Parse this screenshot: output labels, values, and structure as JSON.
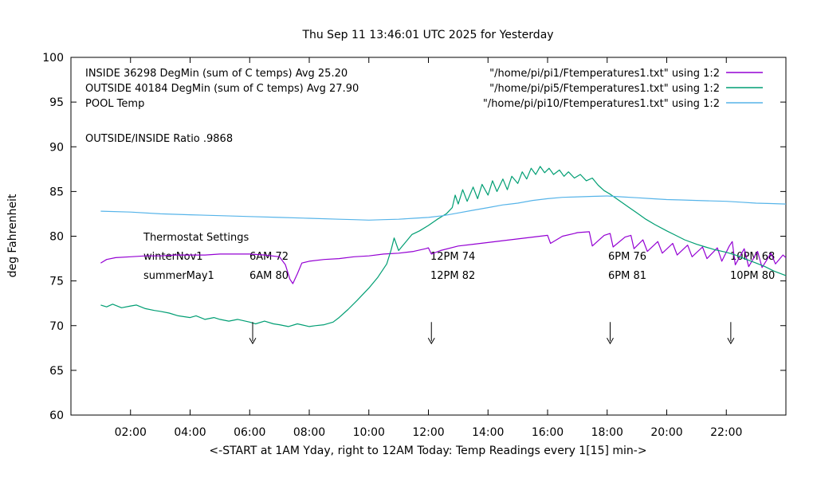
{
  "chart_data": {
    "type": "line",
    "title": "Thu Sep 11 13:46:01 UTC 2025 for Yesterday",
    "xlabel": "<-START at 1AM Yday, right to 12AM Today:  Temp Readings every 1[15] min->",
    "ylabel": "deg Fahrenheit",
    "xlim": [
      0,
      24
    ],
    "ylim": [
      60,
      100
    ],
    "grid": false,
    "x_unit": "hours, 1 = 1AM yesterday, 24 = 12AM today",
    "xticks": [
      {
        "v": 2,
        "label": "02:00"
      },
      {
        "v": 4,
        "label": "04:00"
      },
      {
        "v": 6,
        "label": "06:00"
      },
      {
        "v": 8,
        "label": "08:00"
      },
      {
        "v": 10,
        "label": "10:00"
      },
      {
        "v": 12,
        "label": "12:00"
      },
      {
        "v": 14,
        "label": "14:00"
      },
      {
        "v": 16,
        "label": "16:00"
      },
      {
        "v": 18,
        "label": "18:00"
      },
      {
        "v": 20,
        "label": "20:00"
      },
      {
        "v": 22,
        "label": "22:00"
      }
    ],
    "yticks": [
      {
        "v": 60,
        "label": "60"
      },
      {
        "v": 65,
        "label": "65"
      },
      {
        "v": 70,
        "label": "70"
      },
      {
        "v": 75,
        "label": "75"
      },
      {
        "v": 80,
        "label": "80"
      },
      {
        "v": 85,
        "label": "85"
      },
      {
        "v": 90,
        "label": "90"
      },
      {
        "v": 95,
        "label": "95"
      },
      {
        "v": 100,
        "label": "100"
      }
    ],
    "legend": {
      "position": "top-left-labels-with-right-aligned-files",
      "entries": [
        {
          "label": "INSIDE 36298 DegMin (sum of C temps) Avg 25.20",
          "file": "\"/home/pi/pi1/Ftemperatures1.txt\" using 1:2",
          "series": "INSIDE"
        },
        {
          "label": "OUTSIDE 40184 DegMin (sum of C temps) Avg 27.90",
          "file": "\"/home/pi/pi5/Ftemperatures1.txt\" using 1:2",
          "series": "OUTSIDE"
        },
        {
          "label": "POOL Temp",
          "file": "\"/home/pi/pi10/Ftemperatures1.txt\" using 1:2",
          "series": "POOL"
        }
      ]
    },
    "annotations": {
      "ratio": "OUTSIDE/INSIDE Ratio .9868",
      "thermostat": {
        "heading": "Thermostat Settings",
        "rows": [
          {
            "name": "winterNov1",
            "times": [
              "6AM 72",
              "12PM 74",
              "6PM 76",
              "10PM 68"
            ]
          },
          {
            "name": "summerMay1",
            "times": [
              "6AM 80",
              "12PM 82",
              "6PM 81",
              "10PM 80"
            ]
          }
        ]
      }
    },
    "arrows": {
      "x_hours": [
        6.1,
        12.1,
        18.1,
        22.15
      ],
      "from_y": 70.4,
      "to_y": 68.0
    },
    "series": [
      {
        "name": "INSIDE",
        "color": "#9400d3",
        "points": [
          [
            1.0,
            77.0
          ],
          [
            1.2,
            77.4
          ],
          [
            1.5,
            77.6
          ],
          [
            2.0,
            77.7
          ],
          [
            2.5,
            77.8
          ],
          [
            3.0,
            77.8
          ],
          [
            3.5,
            77.9
          ],
          [
            4.0,
            77.9
          ],
          [
            4.5,
            77.9
          ],
          [
            5.0,
            78.0
          ],
          [
            5.5,
            78.0
          ],
          [
            6.0,
            78.0
          ],
          [
            6.5,
            77.9
          ],
          [
            7.0,
            77.7
          ],
          [
            7.2,
            76.8
          ],
          [
            7.35,
            75.2
          ],
          [
            7.45,
            74.7
          ],
          [
            7.6,
            75.8
          ],
          [
            7.75,
            77.0
          ],
          [
            8.0,
            77.2
          ],
          [
            8.5,
            77.4
          ],
          [
            9.0,
            77.5
          ],
          [
            9.5,
            77.7
          ],
          [
            10.0,
            77.8
          ],
          [
            10.5,
            78.0
          ],
          [
            11.0,
            78.1
          ],
          [
            11.5,
            78.3
          ],
          [
            11.9,
            78.6
          ],
          [
            12.0,
            78.7
          ],
          [
            12.1,
            78.0
          ],
          [
            12.4,
            78.4
          ],
          [
            13.0,
            78.9
          ],
          [
            13.5,
            79.1
          ],
          [
            14.0,
            79.3
          ],
          [
            14.5,
            79.5
          ],
          [
            15.0,
            79.7
          ],
          [
            15.5,
            79.9
          ],
          [
            16.0,
            80.1
          ],
          [
            16.1,
            79.2
          ],
          [
            16.5,
            80.0
          ],
          [
            16.9,
            80.3
          ],
          [
            17.0,
            80.4
          ],
          [
            17.4,
            80.5
          ],
          [
            17.5,
            78.9
          ],
          [
            17.9,
            80.1
          ],
          [
            18.1,
            80.3
          ],
          [
            18.2,
            78.8
          ],
          [
            18.6,
            79.9
          ],
          [
            18.8,
            80.1
          ],
          [
            18.9,
            78.6
          ],
          [
            19.2,
            79.6
          ],
          [
            19.35,
            78.3
          ],
          [
            19.7,
            79.4
          ],
          [
            19.85,
            78.1
          ],
          [
            20.2,
            79.2
          ],
          [
            20.35,
            77.9
          ],
          [
            20.7,
            79.0
          ],
          [
            20.85,
            77.7
          ],
          [
            21.2,
            78.8
          ],
          [
            21.35,
            77.5
          ],
          [
            21.7,
            78.7
          ],
          [
            21.85,
            77.2
          ],
          [
            22.1,
            78.9
          ],
          [
            22.2,
            79.4
          ],
          [
            22.3,
            76.8
          ],
          [
            22.6,
            78.6
          ],
          [
            22.75,
            76.6
          ],
          [
            23.05,
            78.3
          ],
          [
            23.2,
            76.5
          ],
          [
            23.5,
            78.1
          ],
          [
            23.65,
            76.9
          ],
          [
            23.9,
            77.9
          ],
          [
            24.0,
            77.6
          ]
        ]
      },
      {
        "name": "OUTSIDE",
        "color": "#009e73",
        "points": [
          [
            1.0,
            72.3
          ],
          [
            1.2,
            72.1
          ],
          [
            1.4,
            72.4
          ],
          [
            1.7,
            72.0
          ],
          [
            2.0,
            72.2
          ],
          [
            2.2,
            72.3
          ],
          [
            2.5,
            71.9
          ],
          [
            2.8,
            71.7
          ],
          [
            3.0,
            71.6
          ],
          [
            3.3,
            71.4
          ],
          [
            3.6,
            71.1
          ],
          [
            4.0,
            70.9
          ],
          [
            4.2,
            71.1
          ],
          [
            4.5,
            70.7
          ],
          [
            4.8,
            70.9
          ],
          [
            5.0,
            70.7
          ],
          [
            5.3,
            70.5
          ],
          [
            5.6,
            70.7
          ],
          [
            6.0,
            70.4
          ],
          [
            6.2,
            70.2
          ],
          [
            6.5,
            70.5
          ],
          [
            6.8,
            70.2
          ],
          [
            7.0,
            70.1
          ],
          [
            7.3,
            69.9
          ],
          [
            7.6,
            70.2
          ],
          [
            8.0,
            69.9
          ],
          [
            8.2,
            70.0
          ],
          [
            8.5,
            70.1
          ],
          [
            8.8,
            70.4
          ],
          [
            9.0,
            70.9
          ],
          [
            9.3,
            71.8
          ],
          [
            9.6,
            72.8
          ],
          [
            10.0,
            74.2
          ],
          [
            10.3,
            75.4
          ],
          [
            10.6,
            76.9
          ],
          [
            10.75,
            78.5
          ],
          [
            10.85,
            79.8
          ],
          [
            11.0,
            78.4
          ],
          [
            11.2,
            79.2
          ],
          [
            11.45,
            80.2
          ],
          [
            11.7,
            80.6
          ],
          [
            12.0,
            81.2
          ],
          [
            12.3,
            81.9
          ],
          [
            12.6,
            82.5
          ],
          [
            12.8,
            83.2
          ],
          [
            12.9,
            84.6
          ],
          [
            13.0,
            83.6
          ],
          [
            13.15,
            85.2
          ],
          [
            13.3,
            83.9
          ],
          [
            13.5,
            85.5
          ],
          [
            13.65,
            84.2
          ],
          [
            13.8,
            85.8
          ],
          [
            14.0,
            84.6
          ],
          [
            14.15,
            86.2
          ],
          [
            14.3,
            85.0
          ],
          [
            14.5,
            86.4
          ],
          [
            14.65,
            85.2
          ],
          [
            14.8,
            86.7
          ],
          [
            15.0,
            85.9
          ],
          [
            15.15,
            87.2
          ],
          [
            15.3,
            86.4
          ],
          [
            15.45,
            87.6
          ],
          [
            15.6,
            86.9
          ],
          [
            15.75,
            87.8
          ],
          [
            15.9,
            87.1
          ],
          [
            16.05,
            87.6
          ],
          [
            16.2,
            86.9
          ],
          [
            16.4,
            87.4
          ],
          [
            16.55,
            86.7
          ],
          [
            16.7,
            87.2
          ],
          [
            16.9,
            86.5
          ],
          [
            17.1,
            86.9
          ],
          [
            17.3,
            86.2
          ],
          [
            17.5,
            86.5
          ],
          [
            17.7,
            85.7
          ],
          [
            17.9,
            85.1
          ],
          [
            18.1,
            84.7
          ],
          [
            18.4,
            84.0
          ],
          [
            18.7,
            83.3
          ],
          [
            19.0,
            82.6
          ],
          [
            19.3,
            81.9
          ],
          [
            19.6,
            81.3
          ],
          [
            20.0,
            80.6
          ],
          [
            20.3,
            80.1
          ],
          [
            20.6,
            79.6
          ],
          [
            21.0,
            79.1
          ],
          [
            21.3,
            78.8
          ],
          [
            21.6,
            78.5
          ],
          [
            22.0,
            78.2
          ],
          [
            22.3,
            77.9
          ],
          [
            22.6,
            77.5
          ],
          [
            23.0,
            77.0
          ],
          [
            23.3,
            76.6
          ],
          [
            23.6,
            76.1
          ],
          [
            24.0,
            75.6
          ]
        ]
      },
      {
        "name": "POOL",
        "color": "#56b4e9",
        "points": [
          [
            1.0,
            82.8
          ],
          [
            2.0,
            82.7
          ],
          [
            3.0,
            82.5
          ],
          [
            4.0,
            82.4
          ],
          [
            5.0,
            82.3
          ],
          [
            6.0,
            82.2
          ],
          [
            7.0,
            82.1
          ],
          [
            8.0,
            82.0
          ],
          [
            9.0,
            81.9
          ],
          [
            9.5,
            81.85
          ],
          [
            10.0,
            81.8
          ],
          [
            10.5,
            81.85
          ],
          [
            11.0,
            81.9
          ],
          [
            11.5,
            82.0
          ],
          [
            12.0,
            82.1
          ],
          [
            12.5,
            82.3
          ],
          [
            13.0,
            82.6
          ],
          [
            13.5,
            82.9
          ],
          [
            14.0,
            83.2
          ],
          [
            14.5,
            83.5
          ],
          [
            15.0,
            83.7
          ],
          [
            15.5,
            84.0
          ],
          [
            16.0,
            84.2
          ],
          [
            16.5,
            84.35
          ],
          [
            17.0,
            84.4
          ],
          [
            17.5,
            84.45
          ],
          [
            18.0,
            84.5
          ],
          [
            18.5,
            84.4
          ],
          [
            19.0,
            84.3
          ],
          [
            19.5,
            84.2
          ],
          [
            20.0,
            84.1
          ],
          [
            20.5,
            84.05
          ],
          [
            21.0,
            84.0
          ],
          [
            21.5,
            83.95
          ],
          [
            22.0,
            83.9
          ],
          [
            22.5,
            83.8
          ],
          [
            23.0,
            83.7
          ],
          [
            23.5,
            83.65
          ],
          [
            24.0,
            83.6
          ]
        ]
      }
    ]
  }
}
